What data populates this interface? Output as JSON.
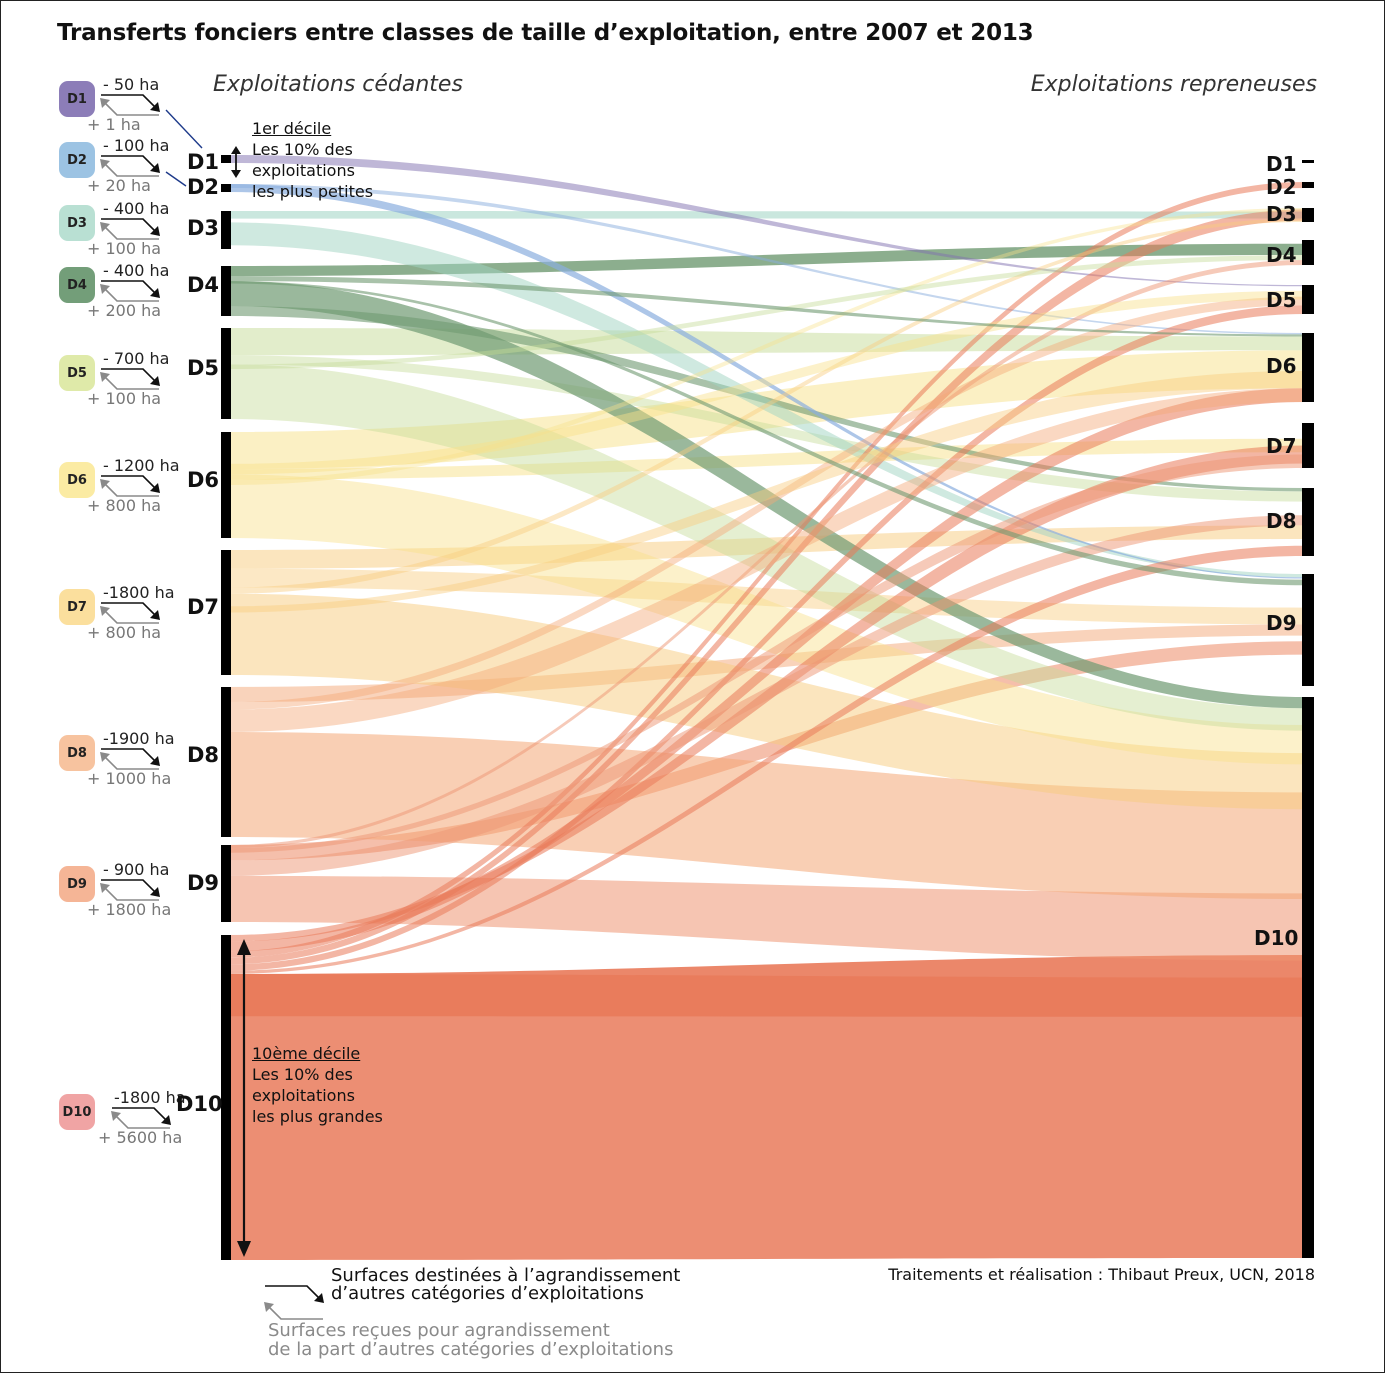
{
  "title": "Transferts fonciers entre classes de taille d’exploitation, entre 2007 et 2013",
  "headers": {
    "left": "Exploitations cédantes",
    "right": "Exploitations repreneuses"
  },
  "colors": {
    "D1": "#8c7db8",
    "D2": "#9cc3e3",
    "D3": "#a9d9c9",
    "D4": "#739e79",
    "D5": "#cfe3a4",
    "D6": "#fbe9a0",
    "D7": "#fad7a0",
    "D8": "#f6b995",
    "D9": "#f2ae8c",
    "D10": "#ee9a9a",
    "flow_D1": "#7f6fb0",
    "flow_D2": "#8aaede",
    "flow_D3": "#9fd3c2",
    "flow_D4": "#6f9a72",
    "flow_D5": "#c5dc98",
    "flow_D6": "#f8e18a",
    "flow_D7": "#f8cb7e",
    "flow_D8": "#f4a877",
    "flow_D9": "#ee9573",
    "flow_D10": "#e97a5a"
  },
  "classes": [
    {
      "id": "D1",
      "badge": "D1",
      "loss": "- 50 ha",
      "gain": "+ 1 ha",
      "label": "D1"
    },
    {
      "id": "D2",
      "badge": "D2",
      "loss": "- 100 ha",
      "gain": "+ 20 ha",
      "label": "D2"
    },
    {
      "id": "D3",
      "badge": "D3",
      "loss": "- 400 ha",
      "gain": "+ 100 ha",
      "label": "D3"
    },
    {
      "id": "D4",
      "badge": "D4",
      "loss": "- 400 ha",
      "gain": "+ 200 ha",
      "label": "D4"
    },
    {
      "id": "D5",
      "badge": "D5",
      "loss": "- 700 ha",
      "gain": "+ 100 ha",
      "label": "D5"
    },
    {
      "id": "D6",
      "badge": "D6",
      "loss": "- 1200 ha",
      "gain": "+ 800 ha",
      "label": "D6"
    },
    {
      "id": "D7",
      "badge": "D7",
      "loss": "-1800 ha",
      "gain": "+ 800 ha",
      "label": "D7"
    },
    {
      "id": "D8",
      "badge": "D8",
      "loss": "-1900 ha",
      "gain": "+ 1000 ha",
      "label": "D8"
    },
    {
      "id": "D9",
      "badge": "D9",
      "loss": "- 900 ha",
      "gain": "+ 1800 ha",
      "label": "D9"
    },
    {
      "id": "D10",
      "badge": "D10",
      "loss": "-1800 ha",
      "gain": "+ 5600 ha",
      "label": "D10"
    }
  ],
  "notes": {
    "first_decile": {
      "title": "1er décile",
      "line1": "Les 10% des",
      "line2": "exploitations",
      "line3": "les plus petites"
    },
    "tenth_decile": {
      "title": "10ème décile",
      "line1": "Les 10% des",
      "line2": "exploitations",
      "line3": "les plus grandes"
    }
  },
  "legend": {
    "out_line1": "Surfaces destinées à l’agrandissement",
    "out_line2": "d’autres catégories d’exploitations",
    "in_line1": "Surfaces reçues pour agrandissement",
    "in_line2": "de la part d’autres catégories d’exploitations"
  },
  "credit": "Traitements et réalisation : Thibaut Preux, UCN, 2018"
}
